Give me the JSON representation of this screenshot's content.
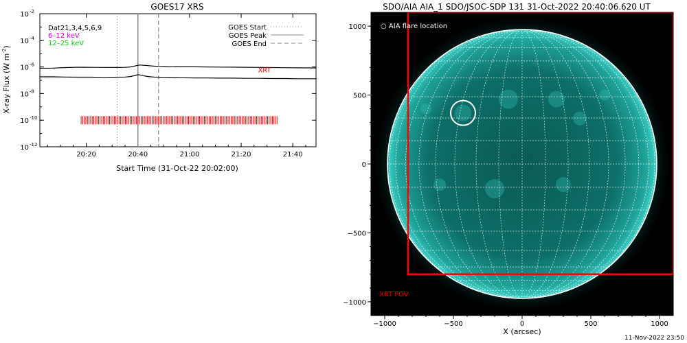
{
  "chart_data": [
    {
      "type": "line",
      "title": "GOES17 XRS",
      "xlabel": "Start Time (31-Oct-22 20:02:00)",
      "ylabel": "X-ray Flux (W m",
      "ylabel_sup": "-2",
      "y_scale": "log",
      "ylim": [
        1e-12,
        0.01
      ],
      "xlim_minutes": [
        0,
        107
      ],
      "x_ticks": [
        {
          "minute": 18,
          "label": "20:20"
        },
        {
          "minute": 38,
          "label": "20:40"
        },
        {
          "minute": 58,
          "label": "21:00"
        },
        {
          "minute": 78,
          "label": "21:20"
        },
        {
          "minute": 98,
          "label": "21:40"
        }
      ],
      "y_ticks": [
        {
          "exp": -2,
          "label": "10"
        },
        {
          "exp": -4,
          "label": "10"
        },
        {
          "exp": -6,
          "label": "10"
        },
        {
          "exp": -8,
          "label": "10"
        },
        {
          "exp": -10,
          "label": "10"
        },
        {
          "exp": -12,
          "label": "10"
        }
      ],
      "y_tick_sup": [
        "-2",
        "-4",
        "-6",
        "-8",
        "-10",
        "-12"
      ],
      "series": [
        {
          "color": "#000000",
          "x": [
            0,
            5,
            10,
            15,
            20,
            25,
            30,
            33,
            35,
            37,
            38,
            39,
            40,
            42,
            44,
            46,
            48,
            50,
            55,
            60,
            65,
            70,
            75,
            80,
            85,
            90,
            95,
            100,
            107
          ],
          "y": [
            8e-07,
            8.2e-07,
            9e-07,
            9.5e-07,
            9.3e-07,
            9.2e-07,
            9.1e-07,
            9.3e-07,
            1e-06,
            1.2e-06,
            1.35e-06,
            1.4e-06,
            1.35e-06,
            1.25e-06,
            1.15e-06,
            1.1e-06,
            1.07e-06,
            1.05e-06,
            1.03e-06,
            1.02e-06,
            1e-06,
            9.8e-07,
            9.6e-07,
            9.4e-07,
            9.2e-07,
            9e-07,
            8.8e-07,
            8.6e-07,
            8.5e-07
          ]
        },
        {
          "color": "#000000",
          "x": [
            0,
            5,
            10,
            15,
            20,
            25,
            30,
            33,
            35,
            37,
            38,
            39,
            40,
            42,
            44,
            46,
            48,
            50,
            55,
            60,
            65,
            70,
            75,
            80,
            85,
            90,
            95,
            100,
            107
          ],
          "y": [
            1.8e-07,
            1.8e-07,
            1.75e-07,
            1.7e-07,
            1.7e-07,
            1.65e-07,
            1.7e-07,
            1.75e-07,
            1.9e-07,
            2.3e-07,
            2.6e-07,
            2.5e-07,
            2.2e-07,
            1.9e-07,
            1.75e-07,
            1.7e-07,
            1.65e-07,
            1.6e-07,
            1.55e-07,
            1.5e-07,
            1.5e-07,
            1.45e-07,
            1.45e-07,
            1.4e-07,
            1.4e-07,
            1.35e-07,
            1.35e-07,
            1.3e-07,
            1.3e-07
          ]
        }
      ],
      "vlines": [
        {
          "name": "GOES Start",
          "minute": 30,
          "style": "dotted",
          "color": "#888888"
        },
        {
          "name": "GOES Peak",
          "minute": 38,
          "style": "solid",
          "color": "#888888"
        },
        {
          "name": "GOES End",
          "minute": 46,
          "style": "dashed",
          "color": "#888888"
        }
      ],
      "xrt_label": "XRT",
      "xrt_color": "#ff0000",
      "xrt_flux": 1e-10,
      "xrt_range_minutes": [
        16,
        92
      ],
      "channel_labels": [
        {
          "text": "Dat21,3,4,5,6,9",
          "color": "#000000"
        },
        {
          "text": "6–12 keV",
          "color": "#dd00dd"
        },
        {
          "text": "12–25 keV",
          "color": "#00cc00"
        }
      ],
      "legend": [
        {
          "label": "GOES Start",
          "style": "dotted"
        },
        {
          "label": "GOES Peak",
          "style": "solid"
        },
        {
          "label": "GOES End",
          "style": "dashed"
        }
      ],
      "legend_position": "top-right"
    },
    {
      "type": "heatmap",
      "title": "SDO/AIA AIA_1 SDO/JSOC-SDP 131 31-Oct-2022 20:40:06.620 UT",
      "xlabel": "X (arcsec)",
      "ylabel": "",
      "xlim": [
        -1100,
        1100
      ],
      "ylim": [
        -1100,
        1100
      ],
      "x_ticks": [
        -1000,
        -500,
        0,
        500,
        1000
      ],
      "x_tick_labels": [
        "−1000",
        "−500",
        "0",
        "500",
        "1000"
      ],
      "y_ticks": [
        1000,
        500,
        0,
        -500,
        -1000
      ],
      "y_tick_labels": [
        "1000",
        "500",
        "0",
        "−500",
        "−1000"
      ],
      "solar_radius_arcsec": 980,
      "grid": true,
      "disk_color": "#0d6f68",
      "background_color": "#000000",
      "flare_location": {
        "x": -430,
        "y": 370,
        "radius": 90,
        "label": "AIA flare location",
        "color": "#ffffff"
      },
      "xrt_fov": {
        "x0": -830,
        "x1": 1100,
        "y0": -800,
        "y1": 1100,
        "label": "XRT FOV",
        "color": "#ff0000"
      }
    }
  ],
  "footer": {
    "timestamp": "11-Nov-2022 23:50"
  }
}
